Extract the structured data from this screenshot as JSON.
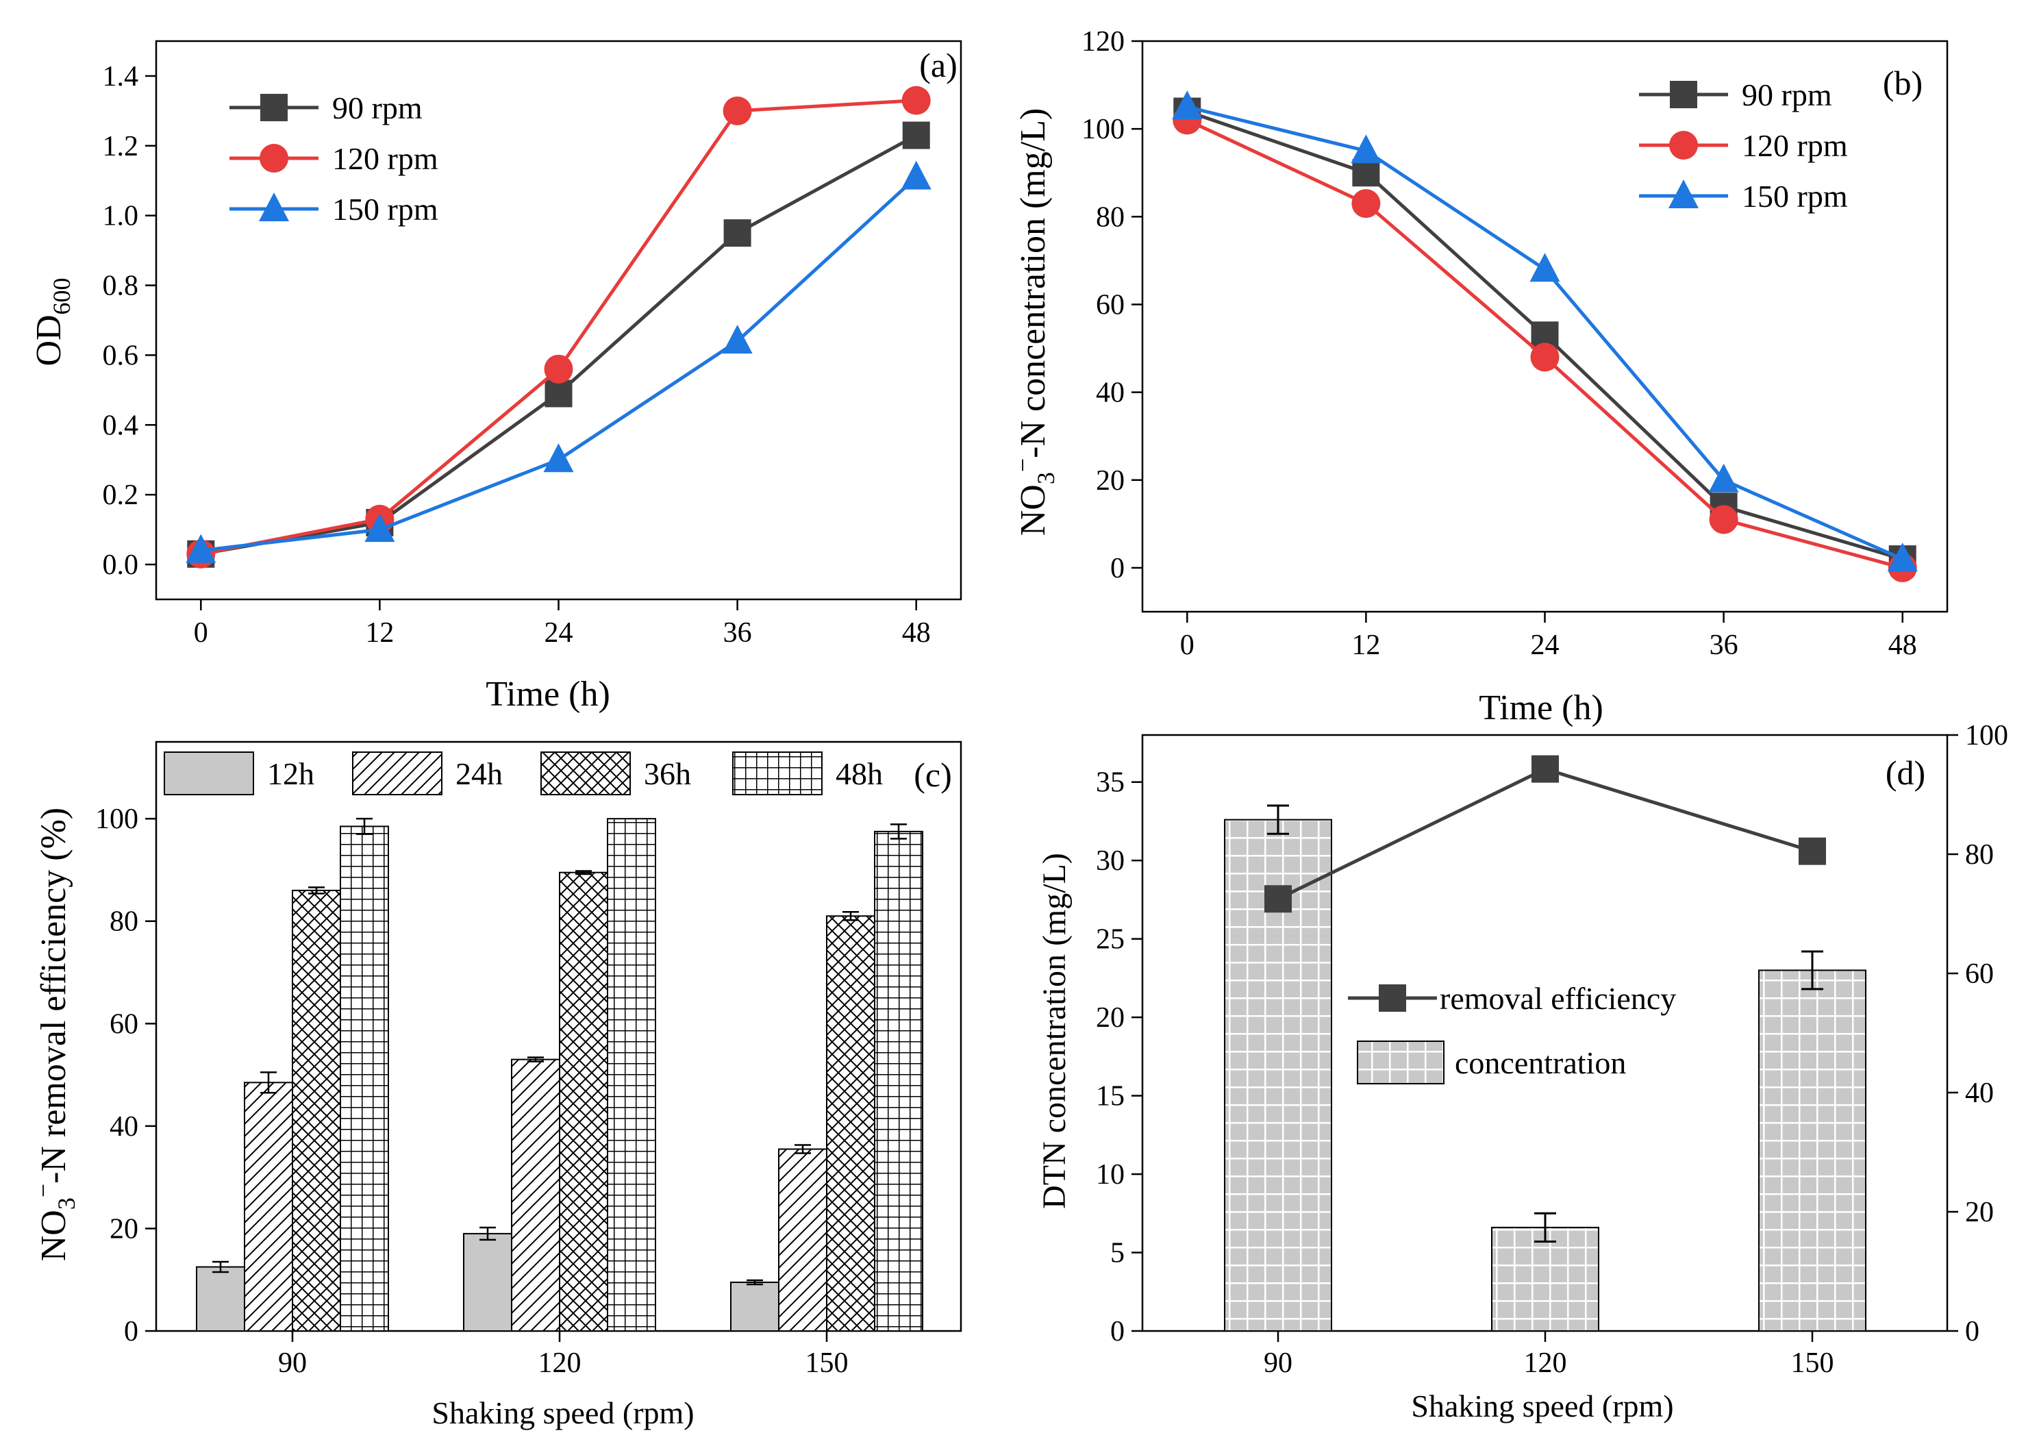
{
  "colors": {
    "s90": "#404040",
    "s120": "#e83b3b",
    "s150": "#1f77e0",
    "bar_fill": "#c8c8c8",
    "axis": "#000000"
  },
  "chart_data": [
    {
      "panel": "(a)",
      "type": "line",
      "xlabel": "Time (h)",
      "ylabel_main": "OD",
      "ylabel_sub": "600",
      "x": [
        0,
        12,
        24,
        36,
        48
      ],
      "xlim": [
        -3,
        51
      ],
      "ylim": [
        -0.1,
        1.5
      ],
      "xticks": [
        0,
        12,
        24,
        36,
        48
      ],
      "yticks": [
        0.0,
        0.2,
        0.4,
        0.6,
        0.8,
        1.0,
        1.2,
        1.4
      ],
      "ytick_labels": [
        "0.0",
        "0.2",
        "0.4",
        "0.6",
        "0.8",
        "1.0",
        "1.2",
        "1.4"
      ],
      "legend_position": "top-left",
      "series": [
        {
          "name": "90 rpm",
          "marker": "square",
          "color": "#404040",
          "values": [
            0.03,
            0.12,
            0.49,
            0.95,
            1.23
          ]
        },
        {
          "name": "120 rpm",
          "marker": "circle",
          "color": "#e83b3b",
          "values": [
            0.03,
            0.13,
            0.56,
            1.3,
            1.33
          ]
        },
        {
          "name": "150 rpm",
          "marker": "triangle",
          "color": "#1f77e0",
          "values": [
            0.04,
            0.1,
            0.3,
            0.64,
            1.11
          ]
        }
      ]
    },
    {
      "panel": "(b)",
      "type": "line",
      "xlabel": "Time (h)",
      "ylabel_main": "NO",
      "ylabel_sub": "3",
      "ylabel_sup": "−",
      "ylabel_rest": "-N concentration (mg/L)",
      "x": [
        0,
        12,
        24,
        36,
        48
      ],
      "xlim": [
        -3,
        51
      ],
      "ylim": [
        -10,
        120
      ],
      "xticks": [
        0,
        12,
        24,
        36,
        48
      ],
      "yticks": [
        0,
        20,
        40,
        60,
        80,
        100,
        120
      ],
      "ytick_labels": [
        "0",
        "20",
        "40",
        "60",
        "80",
        "100",
        "120"
      ],
      "legend_position": "top-right",
      "series": [
        {
          "name": "90 rpm",
          "marker": "square",
          "color": "#404040",
          "values": [
            104,
            90,
            53,
            14,
            2
          ]
        },
        {
          "name": "120 rpm",
          "marker": "circle",
          "color": "#e83b3b",
          "values": [
            102,
            83,
            48,
            11,
            0
          ]
        },
        {
          "name": "150 rpm",
          "marker": "triangle",
          "color": "#1f77e0",
          "values": [
            105,
            95,
            68,
            20,
            2
          ]
        }
      ]
    },
    {
      "panel": "(c)",
      "type": "bar",
      "xlabel": "Shaking speed (rpm)",
      "ylabel_main": "NO",
      "ylabel_sub": "3",
      "ylabel_sup": "−",
      "ylabel_rest": "-N removal efficiency (%)",
      "categories": [
        "90",
        "120",
        "150"
      ],
      "ylim": [
        0,
        115
      ],
      "yticks": [
        0,
        20,
        40,
        60,
        80,
        100
      ],
      "ytick_labels": [
        "0",
        "20",
        "40",
        "60",
        "80",
        "100"
      ],
      "legend_position": "top",
      "series": [
        {
          "name": "12h",
          "pattern": "solid",
          "values": [
            12.5,
            19,
            9.5
          ],
          "errors": [
            1.0,
            1.2,
            0.4
          ]
        },
        {
          "name": "24h",
          "pattern": "diagonal",
          "values": [
            48.5,
            53,
            35.5
          ],
          "errors": [
            2.0,
            0.4,
            0.8
          ]
        },
        {
          "name": "36h",
          "pattern": "crosshatch",
          "values": [
            86,
            89.5,
            81
          ],
          "errors": [
            0.6,
            0.3,
            0.8
          ]
        },
        {
          "name": "48h",
          "pattern": "grid",
          "values": [
            98.5,
            100,
            97.5
          ],
          "errors": [
            1.5,
            0.0,
            1.4
          ]
        }
      ]
    },
    {
      "panel": "(d)",
      "type": "bar",
      "xlabel": "Shaking speed (rpm)",
      "ylabel": "DTN concentration (mg/L)",
      "categories": [
        "90",
        "120",
        "150"
      ],
      "ylim": [
        0,
        38
      ],
      "yticks": [
        0,
        5,
        10,
        15,
        20,
        25,
        30,
        35
      ],
      "ytick_labels": [
        "0",
        "5",
        "10",
        "15",
        "20",
        "25",
        "30",
        "35"
      ],
      "y2lim": [
        0,
        100
      ],
      "y2ticks": [
        0,
        20,
        40,
        60,
        80,
        100
      ],
      "y2tick_labels": [
        "0",
        "20",
        "40",
        "60",
        "80",
        "100"
      ],
      "legend_position": "center",
      "bars": {
        "name": "concentration",
        "pattern": "grid",
        "values": [
          32.6,
          6.6,
          23.0
        ],
        "errors": [
          0.9,
          0.9,
          1.2
        ]
      },
      "line": {
        "name": "removal efficiency",
        "marker": "square",
        "color": "#404040",
        "values": [
          72.5,
          94.3,
          80.5
        ]
      }
    }
  ]
}
